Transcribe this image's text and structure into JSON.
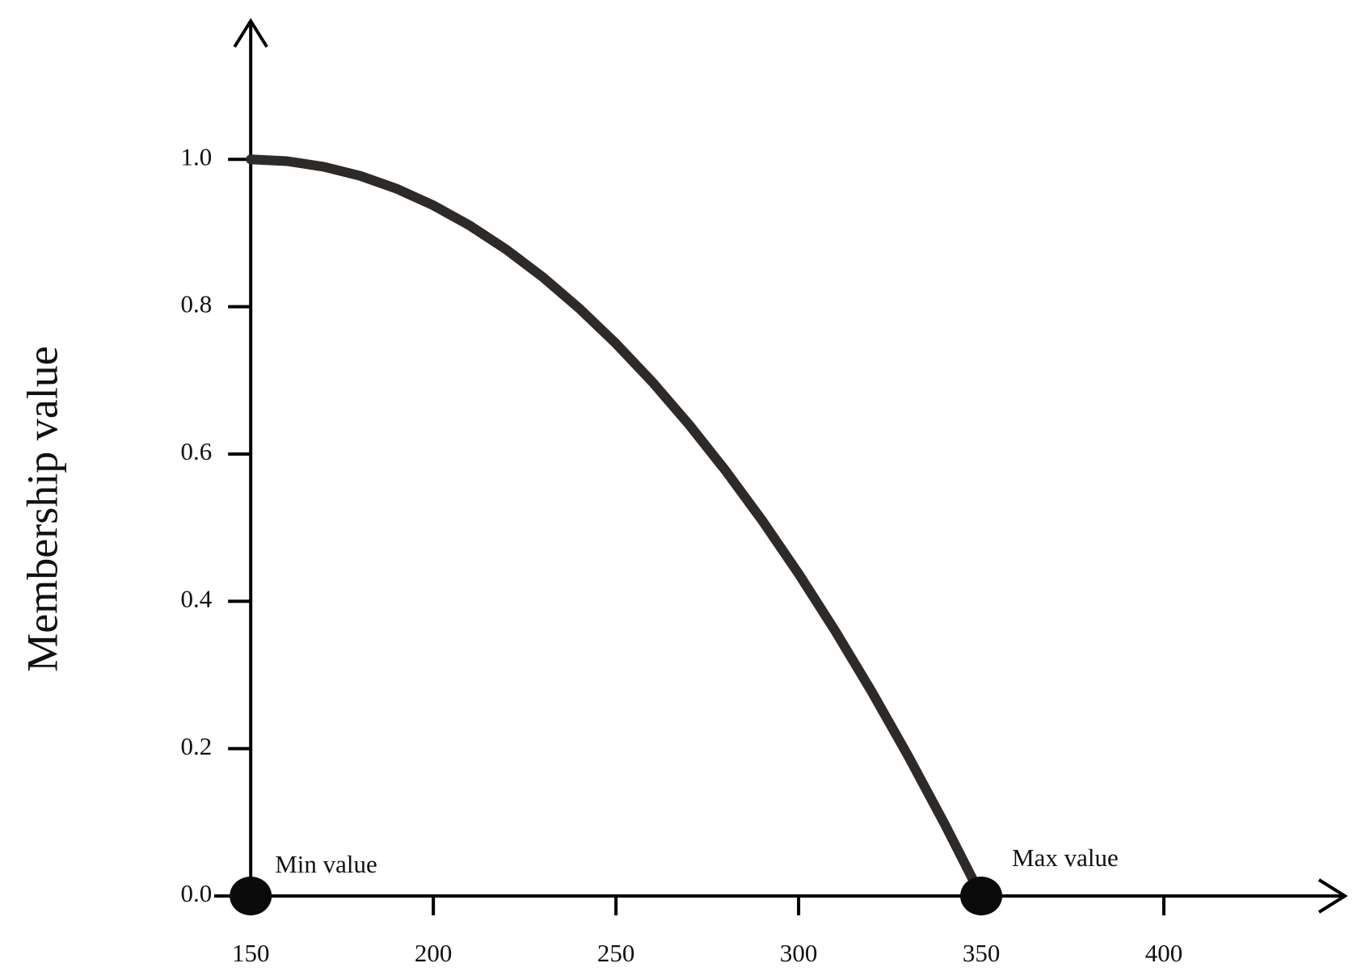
{
  "chart_data": {
    "type": "line",
    "y_label": "Membership value",
    "x": [
      150,
      160,
      170,
      180,
      190,
      200,
      210,
      220,
      230,
      240,
      250,
      260,
      270,
      280,
      290,
      300,
      310,
      320,
      330,
      340,
      350
    ],
    "values": [
      1,
      0.9975,
      0.99,
      0.9775,
      0.96,
      0.9375,
      0.91,
      0.8775,
      0.84,
      0.7975,
      0.75,
      0.6975,
      0.64,
      0.5775,
      0.51,
      0.4375,
      0.36,
      0.2775,
      0.19,
      0.0975,
      0
    ],
    "color": "#2e2a27",
    "xlim": [
      140,
      450
    ],
    "ylim": [
      0,
      1.19
    ],
    "xticks": [
      150,
      200,
      250,
      300,
      350,
      400
    ],
    "yticks": [
      {
        "value": 0,
        "label": "0.0"
      },
      0.2,
      0.4,
      0.6,
      0.8,
      {
        "value": 1,
        "label": "1.0"
      }
    ],
    "annotations": [
      {
        "text": "Min value",
        "x": 150,
        "y": 0
      },
      {
        "text": "Max value",
        "x": 350,
        "y": 0
      }
    ],
    "grid": false
  }
}
